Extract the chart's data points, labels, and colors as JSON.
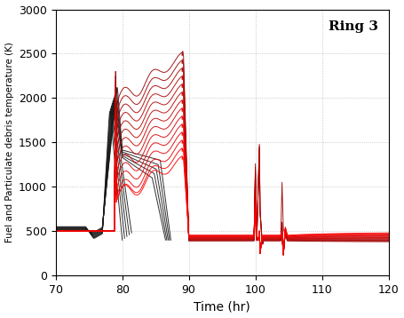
{
  "title": "Ring 3",
  "xlabel": "Time (hr)",
  "ylabel": "Fuel and Particulate debris temperature (K)",
  "xlim": [
    70,
    120
  ],
  "ylim": [
    0,
    3000
  ],
  "xticks": [
    70,
    80,
    90,
    100,
    110,
    120
  ],
  "yticks": [
    0,
    500,
    1000,
    1500,
    2000,
    2500,
    3000
  ],
  "grid_color": "#aaaaaa",
  "background_color": "#ffffff",
  "black_color": "#1a1a1a",
  "red_color": "#dd0000",
  "n_black": 10,
  "n_red": 14
}
